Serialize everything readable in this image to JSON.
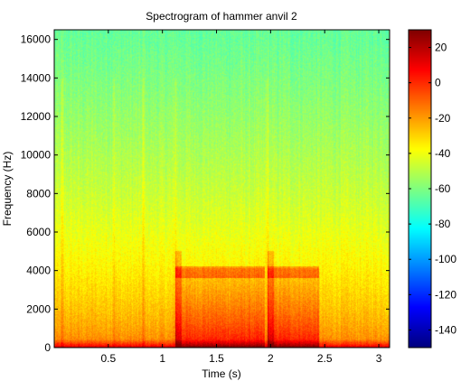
{
  "chart_data": {
    "type": "heatmap",
    "title": "Spectrogram of hammer anvil 2",
    "xlabel": "Time (s)",
    "ylabel": "Frequency (Hz)",
    "xlim": [
      0,
      3.1
    ],
    "ylim": [
      0,
      16500
    ],
    "x_ticks": [
      0.5,
      1,
      1.5,
      2,
      2.5,
      3
    ],
    "x_tick_labels": [
      "0.5",
      "1",
      "1.5",
      "2",
      "2.5",
      "3"
    ],
    "y_ticks": [
      0,
      2000,
      4000,
      6000,
      8000,
      10000,
      12000,
      14000,
      16000
    ],
    "y_tick_labels": [
      "0",
      "2000",
      "4000",
      "6000",
      "8000",
      "10000",
      "12000",
      "14000",
      "16000"
    ],
    "colorbar": {
      "colormap": "jet",
      "range": [
        -150,
        30
      ],
      "ticks": [
        20,
        0,
        -20,
        -40,
        -60,
        -80,
        -100,
        -120,
        -140
      ],
      "tick_labels": [
        "20",
        "0",
        "-20",
        "-40",
        "-60",
        "-80",
        "-100",
        "-120",
        "-140"
      ]
    },
    "grid": false,
    "events": [
      {
        "time": 1.12,
        "time_end": 1.95,
        "band_hz": [
          3600,
          4200
        ]
      },
      {
        "time": 1.97,
        "time_end": 2.45,
        "band_hz": [
          3600,
          4200
        ]
      }
    ]
  }
}
